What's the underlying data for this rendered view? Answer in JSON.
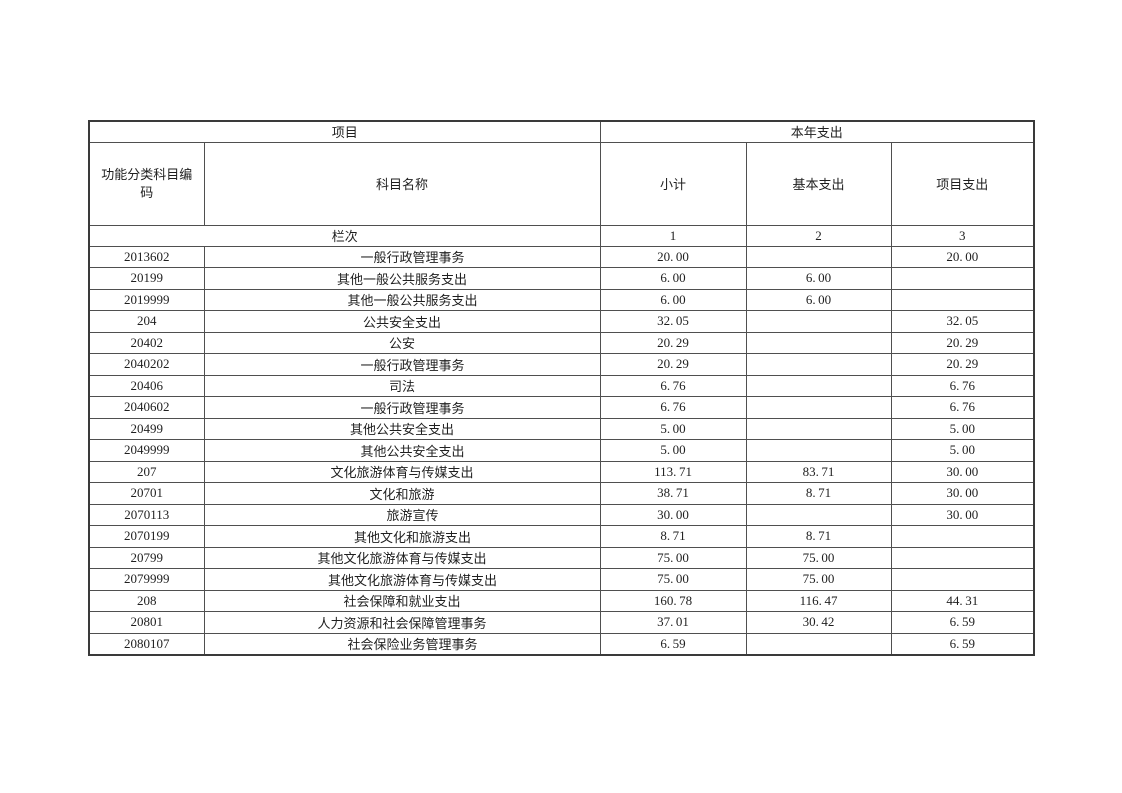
{
  "page": {
    "background": "#ffffff",
    "text_color": "#1f1f1f",
    "border_color": "#4f4f4f"
  },
  "table": {
    "header": {
      "project": "项目",
      "current_year_expenditure": "本年支出",
      "function_code": "功能分类科目编码",
      "subject_name": "科目名称",
      "subtotal": "小计",
      "basic_expenditure": "基本支出",
      "project_expenditure": "项目支出",
      "column_index_label": "栏次",
      "column_indexes": [
        "1",
        "2",
        "3"
      ]
    },
    "rows": [
      {
        "code": "2013602",
        "name": "一般行政管理事务",
        "indent": 1,
        "subtotal": "20.00",
        "basic": "",
        "project": "20.00"
      },
      {
        "code": "20199",
        "name": "其他一般公共服务支出",
        "indent": 0,
        "subtotal": "6.00",
        "basic": "6.00",
        "project": ""
      },
      {
        "code": "2019999",
        "name": "其他一般公共服务支出",
        "indent": 1,
        "subtotal": "6.00",
        "basic": "6.00",
        "project": ""
      },
      {
        "code": "204",
        "name": "公共安全支出",
        "indent": 0,
        "subtotal": "32.05",
        "basic": "",
        "project": "32.05"
      },
      {
        "code": "20402",
        "name": "公安",
        "indent": 0,
        "subtotal": "20.29",
        "basic": "",
        "project": "20.29"
      },
      {
        "code": "2040202",
        "name": "一般行政管理事务",
        "indent": 1,
        "subtotal": "20.29",
        "basic": "",
        "project": "20.29"
      },
      {
        "code": "20406",
        "name": "司法",
        "indent": 0,
        "subtotal": "6.76",
        "basic": "",
        "project": "6.76"
      },
      {
        "code": "2040602",
        "name": "一般行政管理事务",
        "indent": 1,
        "subtotal": "6.76",
        "basic": "",
        "project": "6.76"
      },
      {
        "code": "20499",
        "name": "其他公共安全支出",
        "indent": 0,
        "subtotal": "5.00",
        "basic": "",
        "project": "5.00"
      },
      {
        "code": "2049999",
        "name": "其他公共安全支出",
        "indent": 1,
        "subtotal": "5.00",
        "basic": "",
        "project": "5.00"
      },
      {
        "code": "207",
        "name": "文化旅游体育与传媒支出",
        "indent": 0,
        "subtotal": "113.71",
        "basic": "83.71",
        "project": "30.00"
      },
      {
        "code": "20701",
        "name": "文化和旅游",
        "indent": 0,
        "subtotal": "38.71",
        "basic": "8.71",
        "project": "30.00"
      },
      {
        "code": "2070113",
        "name": "旅游宣传",
        "indent": 1,
        "subtotal": "30.00",
        "basic": "",
        "project": "30.00"
      },
      {
        "code": "2070199",
        "name": "其他文化和旅游支出",
        "indent": 1,
        "subtotal": "8.71",
        "basic": "8.71",
        "project": ""
      },
      {
        "code": "20799",
        "name": "其他文化旅游体育与传媒支出",
        "indent": 0,
        "subtotal": "75.00",
        "basic": "75.00",
        "project": ""
      },
      {
        "code": "2079999",
        "name": "其他文化旅游体育与传媒支出",
        "indent": 1,
        "subtotal": "75.00",
        "basic": "75.00",
        "project": ""
      },
      {
        "code": "208",
        "name": "社会保障和就业支出",
        "indent": 0,
        "subtotal": "160.78",
        "basic": "116.47",
        "project": "44.31"
      },
      {
        "code": "20801",
        "name": "人力资源和社会保障管理事务",
        "indent": 0,
        "subtotal": "37.01",
        "basic": "30.42",
        "project": "6.59"
      },
      {
        "code": "2080107",
        "name": "社会保险业务管理事务",
        "indent": 1,
        "subtotal": "6.59",
        "basic": "",
        "project": "6.59"
      }
    ]
  }
}
